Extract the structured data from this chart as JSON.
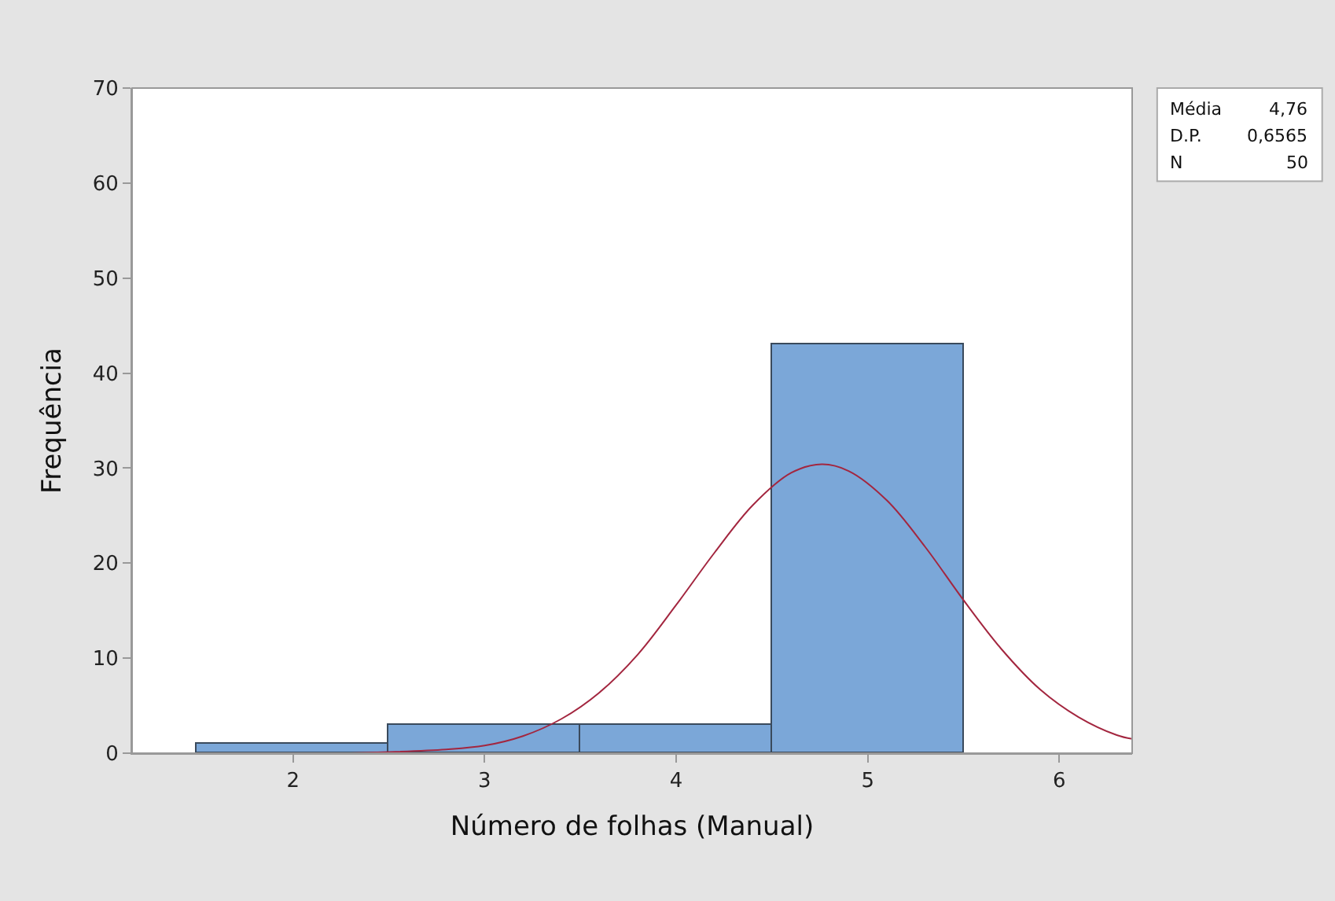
{
  "chart_data": {
    "type": "histogram",
    "xlabel": "Número de folhas (Manual)",
    "ylabel": "Frequência",
    "bins": [
      1.5,
      2.5,
      3.5,
      4.5,
      5.5
    ],
    "values": [
      1,
      3,
      3,
      43
    ],
    "color": "#7ba7d8",
    "series": [
      {
        "type": "line",
        "color": "#a3263f",
        "x": [
          2.3,
          2.8,
          3.0,
          3.2,
          3.4,
          3.6,
          3.8,
          4.0,
          4.2,
          4.4,
          4.6,
          4.76,
          4.9,
          5.1,
          5.3,
          5.5,
          5.7,
          5.9,
          6.1,
          6.3,
          6.38
        ],
        "values": [
          0.0,
          0.4,
          0.8,
          1.8,
          3.6,
          6.4,
          10.4,
          15.6,
          21.1,
          26.1,
          29.5,
          30.4,
          29.7,
          26.6,
          21.7,
          16.1,
          10.9,
          6.7,
          3.8,
          1.9,
          1.5
        ]
      }
    ],
    "annotations": [
      "Média 4,76",
      "D.P. 0,6565",
      "N 50"
    ],
    "xlim": [
      1.16,
      6.38
    ],
    "xticks": [
      2,
      3,
      4,
      5,
      6
    ],
    "ylim": [
      0,
      70
    ],
    "yticks": [
      0,
      10,
      20,
      30,
      40,
      50,
      60,
      70
    ],
    "marker": "none",
    "line_style": "solid"
  }
}
